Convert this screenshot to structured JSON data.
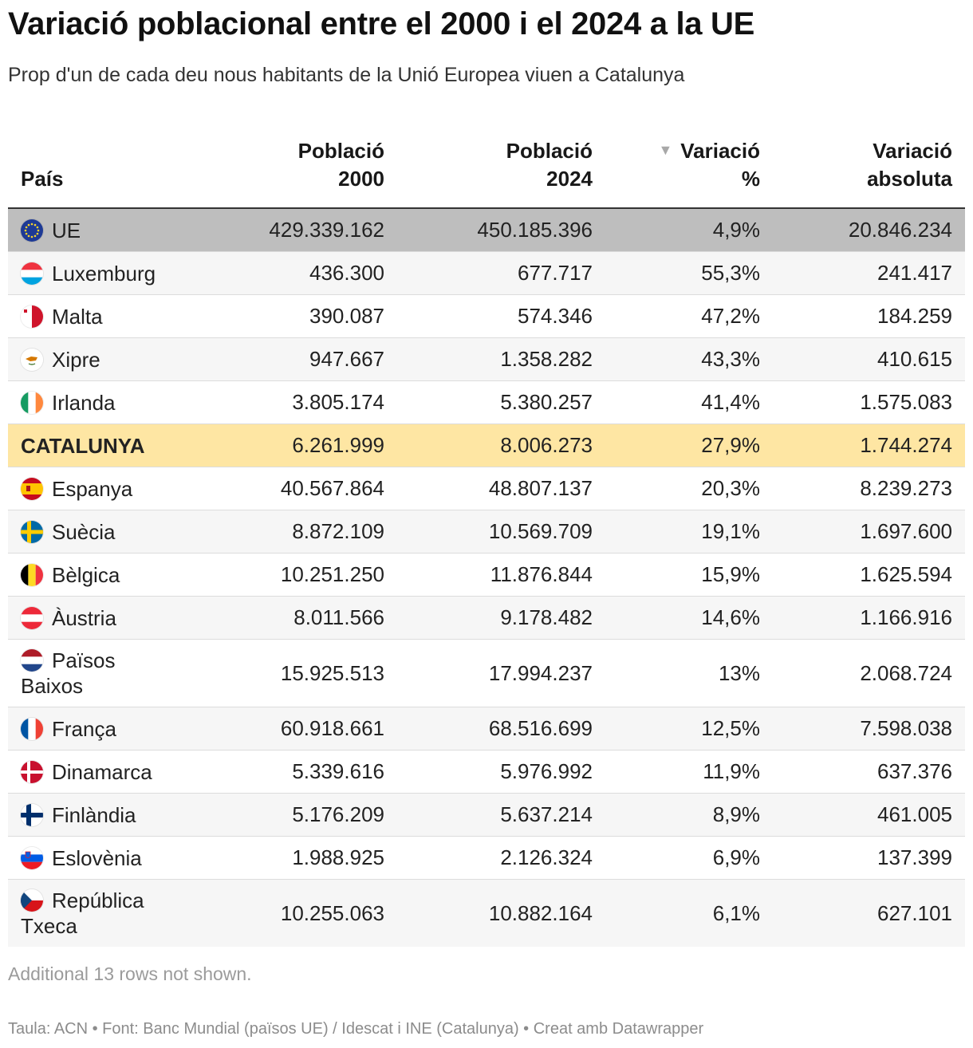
{
  "title": "Variació poblacional entre el 2000 i el 2024 a la UE",
  "subtitle": "Prop d'un de cada deu nous habitants de la Unió Europea viuen a Catalunya",
  "table": {
    "headers": {
      "country": "País",
      "pop2000_line1": "Població",
      "pop2000_line2": "2000",
      "pop2024_line1": "Població",
      "pop2024_line2": "2024",
      "varpct_arrow": "▼",
      "varpct_line1": "Variació",
      "varpct_line2": "%",
      "varabs_line1": "Variació",
      "varabs_line2": "absoluta"
    },
    "rows": [
      {
        "flag": "eu-flag-icon",
        "country": "UE",
        "pop2000": "429.339.162",
        "pop2024": "450.185.396",
        "varpct": "4,9%",
        "varabs": "20.846.234"
      },
      {
        "flag": "luxembourg-flag-icon",
        "country": "Luxemburg",
        "pop2000": "436.300",
        "pop2024": "677.717",
        "varpct": "55,3%",
        "varabs": "241.417"
      },
      {
        "flag": "malta-flag-icon",
        "country": "Malta",
        "pop2000": "390.087",
        "pop2024": "574.346",
        "varpct": "47,2%",
        "varabs": "184.259"
      },
      {
        "flag": "cyprus-flag-icon",
        "country": "Xipre",
        "pop2000": "947.667",
        "pop2024": "1.358.282",
        "varpct": "43,3%",
        "varabs": "410.615"
      },
      {
        "flag": "ireland-flag-icon",
        "country": "Irlanda",
        "pop2000": "3.805.174",
        "pop2024": "5.380.257",
        "varpct": "41,4%",
        "varabs": "1.575.083"
      },
      {
        "flag": "",
        "country": "CATALUNYA",
        "pop2000": "6.261.999",
        "pop2024": "8.006.273",
        "varpct": "27,9%",
        "varabs": "1.744.274"
      },
      {
        "flag": "spain-flag-icon",
        "country": "Espanya",
        "pop2000": "40.567.864",
        "pop2024": "48.807.137",
        "varpct": "20,3%",
        "varabs": "8.239.273"
      },
      {
        "flag": "sweden-flag-icon",
        "country": "Suècia",
        "pop2000": "8.872.109",
        "pop2024": "10.569.709",
        "varpct": "19,1%",
        "varabs": "1.697.600"
      },
      {
        "flag": "belgium-flag-icon",
        "country": "Bèlgica",
        "pop2000": "10.251.250",
        "pop2024": "11.876.844",
        "varpct": "15,9%",
        "varabs": "1.625.594"
      },
      {
        "flag": "austria-flag-icon",
        "country": "Àustria",
        "pop2000": "8.011.566",
        "pop2024": "9.178.482",
        "varpct": "14,6%",
        "varabs": "1.166.916"
      },
      {
        "flag": "netherlands-flag-icon",
        "country": "Països Baixos",
        "pop2000": "15.925.513",
        "pop2024": "17.994.237",
        "varpct": "13%",
        "varabs": "2.068.724"
      },
      {
        "flag": "france-flag-icon",
        "country": "França",
        "pop2000": "60.918.661",
        "pop2024": "68.516.699",
        "varpct": "12,5%",
        "varabs": "7.598.038"
      },
      {
        "flag": "denmark-flag-icon",
        "country": "Dinamarca",
        "pop2000": "5.339.616",
        "pop2024": "5.976.992",
        "varpct": "11,9%",
        "varabs": "637.376"
      },
      {
        "flag": "finland-flag-icon",
        "country": "Finlàndia",
        "pop2000": "5.176.209",
        "pop2024": "5.637.214",
        "varpct": "8,9%",
        "varabs": "461.005"
      },
      {
        "flag": "slovenia-flag-icon",
        "country": "Eslovènia",
        "pop2000": "1.988.925",
        "pop2024": "2.126.324",
        "varpct": "6,9%",
        "varabs": "137.399"
      },
      {
        "flag": "czechia-flag-icon",
        "country": "República Txeca",
        "pop2000": "10.255.063",
        "pop2024": "10.882.164",
        "varpct": "6,1%",
        "varabs": "627.101"
      }
    ]
  },
  "note": "Additional 13 rows not shown.",
  "footer": "Taula: ACN • Font: Banc Mundial (països UE) / Idescat i INE (Catalunya) • Creat amb Datawrapper",
  "colors": {
    "eu_row": "#bebebe",
    "highlight_row": "#fee6a3",
    "zebra_row": "#f6f6f6"
  }
}
